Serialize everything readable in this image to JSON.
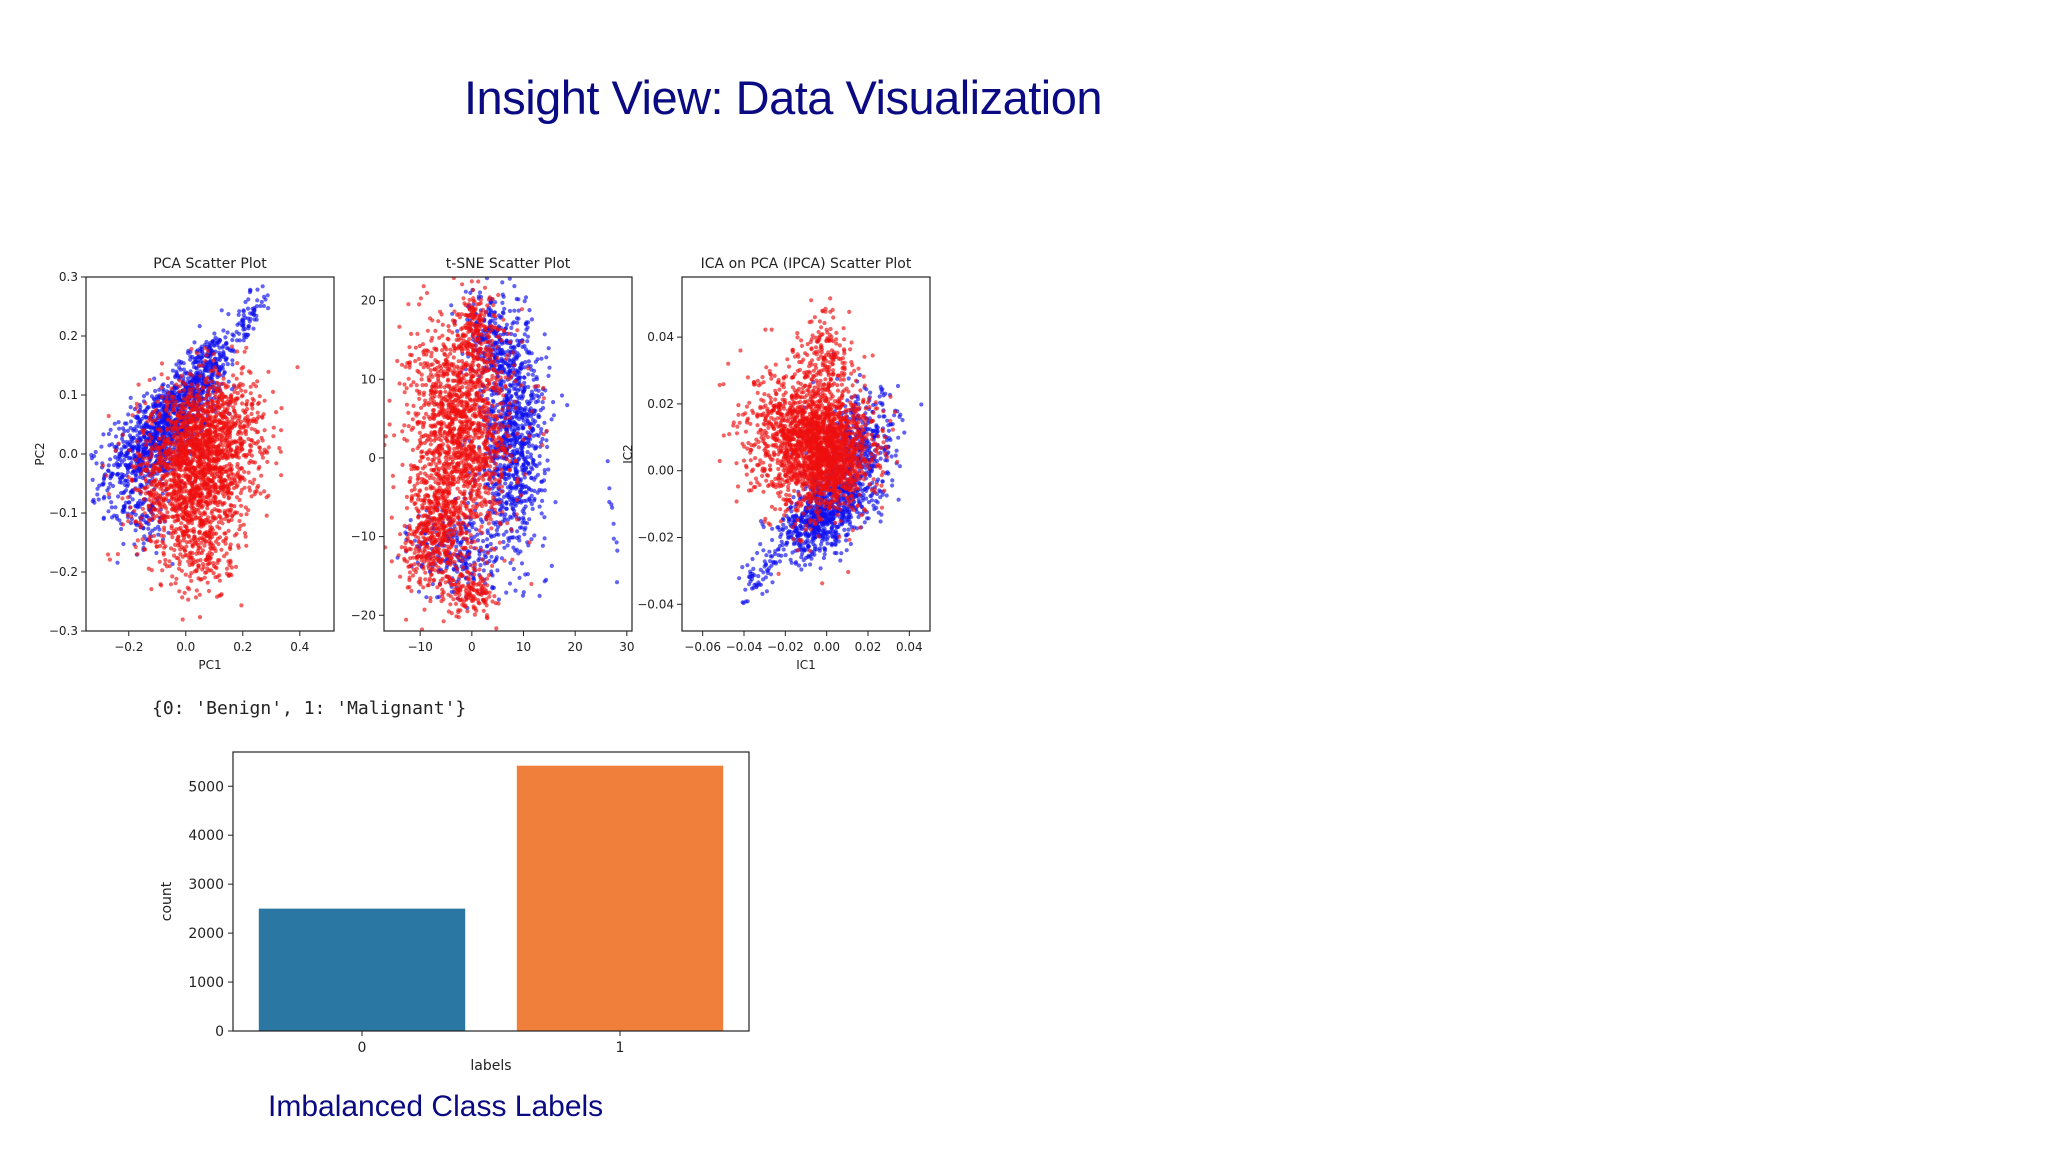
{
  "slide": {
    "title": "Insight View: Data Visualization",
    "label_map": "{0: 'Benign', 1: 'Malignant'}",
    "subtitle": "Imbalanced Class Labels"
  },
  "colors": {
    "benign_points": "#1010ee",
    "malignant_points": "#ee1010",
    "bar_0": "#2a77a3",
    "bar_1": "#ef7f3a"
  },
  "chart_data": [
    {
      "type": "scatter",
      "title": "PCA Scatter Plot",
      "xlabel": "PC1",
      "ylabel": "PC2",
      "xlim": [
        -0.35,
        0.52
      ],
      "ylim": [
        -0.3,
        0.3
      ],
      "xticks": [
        -0.2,
        0.0,
        0.2,
        0.4
      ],
      "xtick_labels": [
        "−0.2",
        "0.0",
        "0.2",
        "0.4"
      ],
      "yticks": [
        0.3,
        0.2,
        0.1,
        0.0,
        -0.1,
        -0.2,
        -0.3
      ],
      "ytick_labels": [
        "0.3",
        "0.2",
        "0.1",
        "0.0",
        "−0.1",
        "−0.2",
        "−0.3"
      ],
      "series": [
        {
          "class": 0,
          "color": "#1010ee",
          "clusters": [
            {
              "cx": -0.1,
              "cy": 0.03,
              "sx": 0.09,
              "sy": 0.05,
              "rho": 0.6,
              "n": 900
            },
            {
              "cx": 0.05,
              "cy": 0.13,
              "sx": 0.07,
              "sy": 0.045,
              "rho": 0.75,
              "n": 420
            },
            {
              "cx": 0.22,
              "cy": 0.23,
              "sx": 0.03,
              "sy": 0.025,
              "rho": 0.7,
              "n": 60
            },
            {
              "cx": -0.15,
              "cy": -0.1,
              "sx": 0.05,
              "sy": 0.03,
              "rho": 0.0,
              "n": 120
            }
          ]
        },
        {
          "class": 1,
          "color": "#ee1010",
          "clusters": [
            {
              "cx": 0.03,
              "cy": -0.03,
              "sx": 0.1,
              "sy": 0.07,
              "rho": 0.1,
              "n": 1600
            },
            {
              "cx": 0.1,
              "cy": 0.04,
              "sx": 0.09,
              "sy": 0.05,
              "rho": 0.2,
              "n": 500
            },
            {
              "cx": 0.06,
              "cy": -0.17,
              "sx": 0.05,
              "sy": 0.04,
              "rho": 0.0,
              "n": 160
            }
          ]
        }
      ],
      "draw_order": [
        0,
        1
      ]
    },
    {
      "type": "scatter",
      "title": "t-SNE Scatter Plot",
      "xlabel": "",
      "ylabel": "",
      "xlim": [
        -17,
        31
      ],
      "ylim": [
        -22,
        23
      ],
      "xticks": [
        -10,
        0,
        10,
        20,
        30
      ],
      "xtick_labels": [
        "−10",
        "0",
        "10",
        "20",
        "30"
      ],
      "yticks": [
        20,
        10,
        0,
        -10,
        -20
      ],
      "ytick_labels": [
        "20",
        "10",
        "0",
        "−10",
        "−20"
      ],
      "series": [
        {
          "class": 0,
          "color": "#1010ee",
          "clusters": [
            {
              "cx": 8,
              "cy": 2,
              "sx": 3.2,
              "sy": 7,
              "rho": 0.1,
              "n": 900
            },
            {
              "cx": 4,
              "cy": 15,
              "sx": 2.5,
              "sy": 3.5,
              "rho": -0.3,
              "n": 260
            },
            {
              "cx": -3,
              "cy": -12,
              "sx": 4,
              "sy": 3,
              "rho": 0.0,
              "n": 240
            },
            {
              "cx": 27,
              "cy": -7,
              "sx": 0.8,
              "sy": 4,
              "rho": -0.8,
              "n": 10
            }
          ]
        },
        {
          "class": 1,
          "color": "#ee1010",
          "clusters": [
            {
              "cx": -2,
              "cy": 4,
              "sx": 5,
              "sy": 7,
              "rho": 0.0,
              "n": 1500
            },
            {
              "cx": -7,
              "cy": -9,
              "sx": 3,
              "sy": 4,
              "rho": 0.2,
              "n": 500
            },
            {
              "cx": 0,
              "cy": -17,
              "sx": 2.5,
              "sy": 1.5,
              "rho": 0.0,
              "n": 150
            },
            {
              "cx": 1,
              "cy": 17,
              "sx": 1.6,
              "sy": 2.5,
              "rho": 0.0,
              "n": 130
            }
          ]
        }
      ],
      "draw_order": [
        0,
        1
      ]
    },
    {
      "type": "scatter",
      "title": "ICA on PCA (IPCA) Scatter Plot",
      "xlabel": "IC1",
      "ylabel": "IC2",
      "xlim": [
        -0.07,
        0.05
      ],
      "ylim": [
        -0.048,
        0.058
      ],
      "xticks": [
        -0.06,
        -0.04,
        -0.02,
        0.0,
        0.02,
        0.04
      ],
      "xtick_labels": [
        "−0.06",
        "−0.04",
        "−0.02",
        "0.00",
        "0.02",
        "0.04"
      ],
      "yticks": [
        0.04,
        0.02,
        0.0,
        -0.02,
        -0.04
      ],
      "ytick_labels": [
        "0.04",
        "0.02",
        "0.00",
        "−0.02",
        "−0.04"
      ],
      "series": [
        {
          "class": 0,
          "color": "#1010ee",
          "clusters": [
            {
              "cx": -0.002,
              "cy": -0.014,
              "sx": 0.011,
              "sy": 0.006,
              "rho": 0.5,
              "n": 700
            },
            {
              "cx": 0.015,
              "cy": 0.005,
              "sx": 0.01,
              "sy": 0.009,
              "rho": 0.3,
              "n": 500
            },
            {
              "cx": -0.032,
              "cy": -0.03,
              "sx": 0.006,
              "sy": 0.004,
              "rho": 0.6,
              "n": 60
            }
          ]
        },
        {
          "class": 1,
          "color": "#ee1010",
          "clusters": [
            {
              "cx": -0.008,
              "cy": 0.01,
              "sx": 0.014,
              "sy": 0.011,
              "rho": 0.0,
              "n": 1500
            },
            {
              "cx": 0.002,
              "cy": 0.004,
              "sx": 0.009,
              "sy": 0.007,
              "rho": 0.0,
              "n": 800
            },
            {
              "cx": 0.0,
              "cy": 0.035,
              "sx": 0.006,
              "sy": 0.006,
              "rho": 0.0,
              "n": 120
            }
          ]
        }
      ],
      "draw_order": [
        0,
        1
      ]
    },
    {
      "type": "bar",
      "categories": [
        "0",
        "1"
      ],
      "values": [
        2500,
        5420
      ],
      "xlabel": "labels",
      "ylabel": "count",
      "ylim": [
        0,
        5700
      ],
      "yticks": [
        0,
        1000,
        2000,
        3000,
        4000,
        5000
      ],
      "colors": [
        "#2a77a3",
        "#ef7f3a"
      ]
    }
  ]
}
